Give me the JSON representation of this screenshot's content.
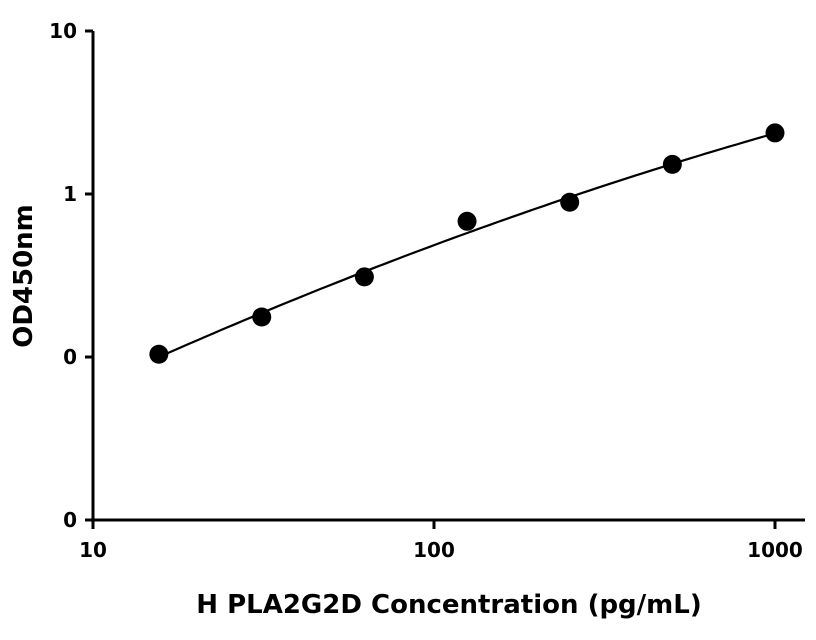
{
  "chart_data": {
    "type": "scatter",
    "title": "",
    "xlabel": "H PLA2G2D Concentration (pg/mL)",
    "ylabel": "OD450nm",
    "x_scale": "log",
    "y_scale": "log",
    "xlim": [
      10,
      1100
    ],
    "ylim": [
      0.01,
      10
    ],
    "x_ticks": [
      {
        "value": 10,
        "label": "10"
      },
      {
        "value": 100,
        "label": "100"
      },
      {
        "value": 1000,
        "label": "1000"
      }
    ],
    "y_ticks": [
      {
        "value": 0.01,
        "label": "0"
      },
      {
        "value": 0.1,
        "label": "0"
      },
      {
        "value": 1,
        "label": "1"
      },
      {
        "value": 10,
        "label": "10"
      }
    ],
    "grid": false,
    "legend": "none",
    "series": [
      {
        "points": [
          {
            "x": 15.6,
            "y": 0.104
          },
          {
            "x": 31.25,
            "y": 0.176
          },
          {
            "x": 62.5,
            "y": 0.31
          },
          {
            "x": 125,
            "y": 0.68
          },
          {
            "x": 250,
            "y": 0.89
          },
          {
            "x": 500,
            "y": 1.52
          },
          {
            "x": 1000,
            "y": 2.37
          }
        ],
        "fit_curve": true,
        "color": "#000000"
      }
    ]
  }
}
